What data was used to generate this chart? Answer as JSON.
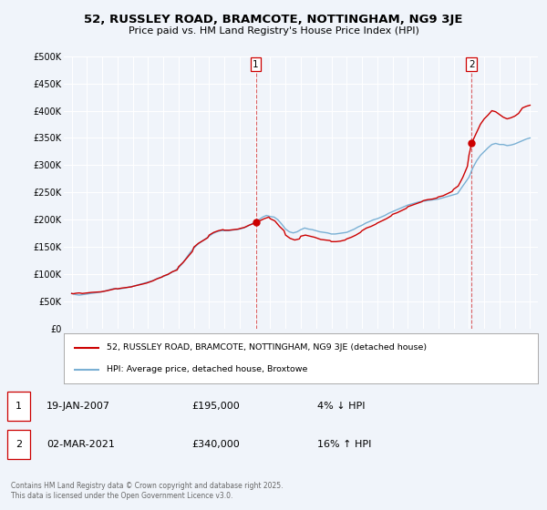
{
  "title": "52, RUSSLEY ROAD, BRAMCOTE, NOTTINGHAM, NG9 3JE",
  "subtitle": "Price paid vs. HM Land Registry's House Price Index (HPI)",
  "background_color": "#f0f4fa",
  "plot_bg_color": "#f0f4fa",
  "red_color": "#cc0000",
  "blue_color": "#7ab0d4",
  "grid_color": "#ffffff",
  "ylim": [
    0,
    500000
  ],
  "yticks": [
    0,
    50000,
    100000,
    150000,
    200000,
    250000,
    300000,
    350000,
    400000,
    450000,
    500000
  ],
  "ytick_labels": [
    "£0",
    "£50K",
    "£100K",
    "£150K",
    "£200K",
    "£250K",
    "£300K",
    "£350K",
    "£400K",
    "£450K",
    "£500K"
  ],
  "xlim_start": 1994.5,
  "xlim_end": 2025.5,
  "xticks": [
    1995,
    1996,
    1997,
    1998,
    1999,
    2000,
    2001,
    2002,
    2003,
    2004,
    2005,
    2006,
    2007,
    2008,
    2009,
    2010,
    2011,
    2012,
    2013,
    2014,
    2015,
    2016,
    2017,
    2018,
    2019,
    2020,
    2021,
    2022,
    2023,
    2024,
    2025
  ],
  "marker1_x": 2007.05,
  "marker1_y": 195000,
  "marker2_x": 2021.17,
  "marker2_y": 340000,
  "marker1_date": "19-JAN-2007",
  "marker1_price": "£195,000",
  "marker1_hpi": "4% ↓ HPI",
  "marker2_date": "02-MAR-2021",
  "marker2_price": "£340,000",
  "marker2_hpi": "16% ↑ HPI",
  "legend_line1": "52, RUSSLEY ROAD, BRAMCOTE, NOTTINGHAM, NG9 3JE (detached house)",
  "legend_line2": "HPI: Average price, detached house, Broxtowe",
  "footer": "Contains HM Land Registry data © Crown copyright and database right 2025.\nThis data is licensed under the Open Government Licence v3.0.",
  "hpi_data": [
    [
      1995.0,
      65000
    ],
    [
      1995.25,
      63000
    ],
    [
      1995.5,
      62000
    ],
    [
      1995.75,
      63000
    ],
    [
      1996.0,
      64000
    ],
    [
      1996.25,
      65000
    ],
    [
      1996.5,
      66000
    ],
    [
      1996.75,
      67000
    ],
    [
      1997.0,
      68000
    ],
    [
      1997.25,
      70000
    ],
    [
      1997.5,
      72000
    ],
    [
      1997.75,
      74000
    ],
    [
      1998.0,
      73000
    ],
    [
      1998.25,
      74000
    ],
    [
      1998.5,
      75000
    ],
    [
      1998.75,
      77000
    ],
    [
      1999.0,
      78000
    ],
    [
      1999.25,
      80000
    ],
    [
      1999.5,
      82000
    ],
    [
      1999.75,
      84000
    ],
    [
      2000.0,
      86000
    ],
    [
      2000.25,
      88000
    ],
    [
      2000.5,
      91000
    ],
    [
      2000.75,
      94000
    ],
    [
      2001.0,
      96000
    ],
    [
      2001.25,
      99000
    ],
    [
      2001.5,
      103000
    ],
    [
      2001.75,
      107000
    ],
    [
      2002.0,
      112000
    ],
    [
      2002.25,
      120000
    ],
    [
      2002.5,
      130000
    ],
    [
      2002.75,
      140000
    ],
    [
      2003.0,
      148000
    ],
    [
      2003.25,
      155000
    ],
    [
      2003.5,
      160000
    ],
    [
      2003.75,
      165000
    ],
    [
      2004.0,
      170000
    ],
    [
      2004.25,
      175000
    ],
    [
      2004.5,
      178000
    ],
    [
      2004.75,
      180000
    ],
    [
      2005.0,
      180000
    ],
    [
      2005.25,
      180000
    ],
    [
      2005.5,
      181000
    ],
    [
      2005.75,
      182000
    ],
    [
      2006.0,
      183000
    ],
    [
      2006.25,
      185000
    ],
    [
      2006.5,
      188000
    ],
    [
      2006.75,
      192000
    ],
    [
      2007.0,
      196000
    ],
    [
      2007.25,
      200000
    ],
    [
      2007.5,
      205000
    ],
    [
      2007.75,
      208000
    ],
    [
      2008.0,
      206000
    ],
    [
      2008.25,
      205000
    ],
    [
      2008.5,
      200000
    ],
    [
      2008.75,
      192000
    ],
    [
      2009.0,
      183000
    ],
    [
      2009.25,
      178000
    ],
    [
      2009.5,
      176000
    ],
    [
      2009.75,
      178000
    ],
    [
      2010.0,
      182000
    ],
    [
      2010.25,
      185000
    ],
    [
      2010.5,
      183000
    ],
    [
      2010.75,
      182000
    ],
    [
      2011.0,
      180000
    ],
    [
      2011.25,
      178000
    ],
    [
      2011.5,
      177000
    ],
    [
      2011.75,
      176000
    ],
    [
      2012.0,
      174000
    ],
    [
      2012.25,
      174000
    ],
    [
      2012.5,
      175000
    ],
    [
      2012.75,
      176000
    ],
    [
      2013.0,
      177000
    ],
    [
      2013.25,
      180000
    ],
    [
      2013.5,
      183000
    ],
    [
      2013.75,
      187000
    ],
    [
      2014.0,
      190000
    ],
    [
      2014.25,
      194000
    ],
    [
      2014.5,
      197000
    ],
    [
      2014.75,
      200000
    ],
    [
      2015.0,
      202000
    ],
    [
      2015.25,
      205000
    ],
    [
      2015.5,
      208000
    ],
    [
      2015.75,
      212000
    ],
    [
      2016.0,
      215000
    ],
    [
      2016.25,
      218000
    ],
    [
      2016.5,
      221000
    ],
    [
      2016.75,
      224000
    ],
    [
      2017.0,
      227000
    ],
    [
      2017.25,
      229000
    ],
    [
      2017.5,
      231000
    ],
    [
      2017.75,
      233000
    ],
    [
      2018.0,
      234000
    ],
    [
      2018.25,
      235000
    ],
    [
      2018.5,
      236000
    ],
    [
      2018.75,
      237000
    ],
    [
      2019.0,
      238000
    ],
    [
      2019.25,
      240000
    ],
    [
      2019.5,
      242000
    ],
    [
      2019.75,
      244000
    ],
    [
      2020.0,
      246000
    ],
    [
      2020.25,
      248000
    ],
    [
      2020.5,
      258000
    ],
    [
      2020.75,
      268000
    ],
    [
      2021.0,
      278000
    ],
    [
      2021.25,
      295000
    ],
    [
      2021.5,
      308000
    ],
    [
      2021.75,
      318000
    ],
    [
      2022.0,
      325000
    ],
    [
      2022.25,
      332000
    ],
    [
      2022.5,
      338000
    ],
    [
      2022.75,
      340000
    ],
    [
      2023.0,
      338000
    ],
    [
      2023.25,
      338000
    ],
    [
      2023.5,
      336000
    ],
    [
      2023.75,
      337000
    ],
    [
      2024.0,
      339000
    ],
    [
      2024.25,
      342000
    ],
    [
      2024.5,
      345000
    ],
    [
      2024.75,
      348000
    ],
    [
      2025.0,
      350000
    ]
  ],
  "price_data": [
    [
      1995.0,
      65000
    ],
    [
      1995.1,
      64500
    ],
    [
      1995.3,
      65500
    ],
    [
      1995.5,
      66000
    ],
    [
      1995.7,
      65000
    ],
    [
      1996.0,
      66000
    ],
    [
      1996.3,
      67000
    ],
    [
      1996.6,
      67500
    ],
    [
      1996.9,
      68000
    ],
    [
      1997.0,
      68500
    ],
    [
      1997.3,
      70000
    ],
    [
      1997.6,
      72000
    ],
    [
      1997.9,
      74000
    ],
    [
      1998.0,
      73500
    ],
    [
      1998.3,
      75000
    ],
    [
      1998.6,
      76000
    ],
    [
      1998.9,
      77000
    ],
    [
      1999.0,
      78000
    ],
    [
      1999.3,
      80000
    ],
    [
      1999.6,
      82000
    ],
    [
      1999.9,
      84000
    ],
    [
      2000.0,
      85000
    ],
    [
      2000.3,
      88000
    ],
    [
      2000.6,
      92000
    ],
    [
      2000.9,
      95000
    ],
    [
      2001.0,
      97000
    ],
    [
      2001.3,
      100000
    ],
    [
      2001.6,
      105000
    ],
    [
      2001.9,
      108000
    ],
    [
      2002.0,
      114000
    ],
    [
      2002.3,
      122000
    ],
    [
      2002.6,
      132000
    ],
    [
      2002.9,
      142000
    ],
    [
      2003.0,
      150000
    ],
    [
      2003.3,
      157000
    ],
    [
      2003.6,
      162000
    ],
    [
      2003.9,
      167000
    ],
    [
      2004.0,
      172000
    ],
    [
      2004.3,
      177000
    ],
    [
      2004.6,
      180000
    ],
    [
      2004.9,
      182000
    ],
    [
      2005.0,
      181000
    ],
    [
      2005.3,
      181000
    ],
    [
      2005.6,
      182000
    ],
    [
      2005.9,
      183000
    ],
    [
      2006.0,
      184000
    ],
    [
      2006.3,
      186000
    ],
    [
      2006.6,
      190000
    ],
    [
      2006.9,
      193000
    ],
    [
      2007.05,
      195000
    ],
    [
      2007.3,
      198000
    ],
    [
      2007.6,
      202000
    ],
    [
      2007.9,
      205000
    ],
    [
      2008.0,
      202000
    ],
    [
      2008.3,
      198000
    ],
    [
      2008.6,
      188000
    ],
    [
      2008.9,
      180000
    ],
    [
      2009.0,
      172000
    ],
    [
      2009.3,
      166000
    ],
    [
      2009.6,
      163000
    ],
    [
      2009.9,
      165000
    ],
    [
      2010.0,
      170000
    ],
    [
      2010.3,
      172000
    ],
    [
      2010.6,
      170000
    ],
    [
      2010.9,
      168000
    ],
    [
      2011.0,
      167000
    ],
    [
      2011.3,
      164000
    ],
    [
      2011.6,
      163000
    ],
    [
      2011.9,
      162000
    ],
    [
      2012.0,
      160000
    ],
    [
      2012.3,
      160000
    ],
    [
      2012.6,
      161000
    ],
    [
      2012.9,
      163000
    ],
    [
      2013.0,
      165000
    ],
    [
      2013.3,
      168000
    ],
    [
      2013.6,
      172000
    ],
    [
      2013.9,
      177000
    ],
    [
      2014.0,
      180000
    ],
    [
      2014.3,
      185000
    ],
    [
      2014.6,
      188000
    ],
    [
      2014.9,
      192000
    ],
    [
      2015.0,
      194000
    ],
    [
      2015.3,
      198000
    ],
    [
      2015.6,
      202000
    ],
    [
      2015.9,
      207000
    ],
    [
      2016.0,
      210000
    ],
    [
      2016.3,
      213000
    ],
    [
      2016.6,
      217000
    ],
    [
      2016.9,
      221000
    ],
    [
      2017.0,
      224000
    ],
    [
      2017.3,
      227000
    ],
    [
      2017.6,
      230000
    ],
    [
      2017.9,
      233000
    ],
    [
      2018.0,
      235000
    ],
    [
      2018.3,
      237000
    ],
    [
      2018.6,
      238000
    ],
    [
      2018.9,
      240000
    ],
    [
      2019.0,
      242000
    ],
    [
      2019.3,
      244000
    ],
    [
      2019.6,
      248000
    ],
    [
      2019.9,
      252000
    ],
    [
      2020.0,
      256000
    ],
    [
      2020.3,
      262000
    ],
    [
      2020.6,
      278000
    ],
    [
      2020.9,
      298000
    ],
    [
      2021.0,
      318000
    ],
    [
      2021.17,
      340000
    ],
    [
      2021.5,
      360000
    ],
    [
      2021.75,
      375000
    ],
    [
      2022.0,
      385000
    ],
    [
      2022.25,
      392000
    ],
    [
      2022.5,
      400000
    ],
    [
      2022.75,
      398000
    ],
    [
      2023.0,
      393000
    ],
    [
      2023.25,
      388000
    ],
    [
      2023.5,
      385000
    ],
    [
      2023.75,
      387000
    ],
    [
      2024.0,
      390000
    ],
    [
      2024.25,
      395000
    ],
    [
      2024.5,
      405000
    ],
    [
      2024.75,
      408000
    ],
    [
      2025.0,
      410000
    ]
  ]
}
